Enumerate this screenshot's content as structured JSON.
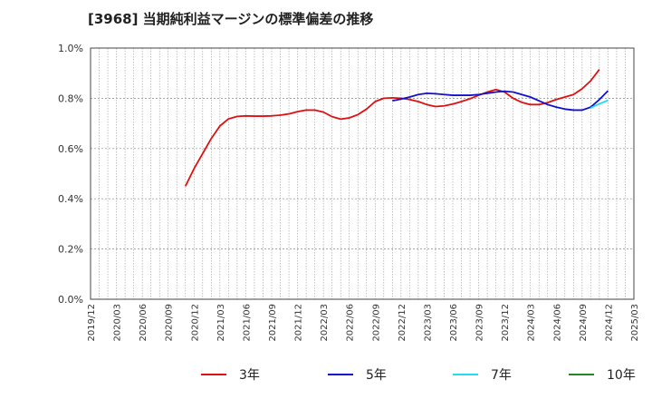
{
  "chart_data": {
    "type": "line",
    "title": "[3968]  当期純利益マージンの標準偏差の推移",
    "xlabel": "",
    "ylabel": "",
    "ylim": [
      0,
      1.0
    ],
    "y_ticks": [
      0.0,
      0.2,
      0.4,
      0.6,
      0.8,
      1.0
    ],
    "y_tick_labels": [
      "0.0%",
      "0.2%",
      "0.4%",
      "0.6%",
      "0.8%",
      "1.0%"
    ],
    "x_range": [
      "2019/12",
      "2025/03"
    ],
    "x_tick_labels": [
      "2019/12",
      "2020/03",
      "2020/06",
      "2020/09",
      "2020/12",
      "2021/03",
      "2021/06",
      "2021/09",
      "2021/12",
      "2022/03",
      "2022/06",
      "2022/09",
      "2022/12",
      "2023/03",
      "2023/06",
      "2023/09",
      "2023/12",
      "2024/03",
      "2024/06",
      "2024/09",
      "2024/12",
      "2025/03"
    ],
    "grid": true,
    "legend_position": "bottom",
    "series": [
      {
        "name": "3年",
        "color": "#dd1111",
        "start": "2020/11",
        "values": [
          0.45,
          0.52,
          0.58,
          0.64,
          0.69,
          0.718,
          0.728,
          0.73,
          0.729,
          0.729,
          0.73,
          0.733,
          0.738,
          0.747,
          0.753,
          0.753,
          0.745,
          0.727,
          0.717,
          0.722,
          0.735,
          0.757,
          0.787,
          0.8,
          0.802,
          0.8,
          0.795,
          0.787,
          0.775,
          0.767,
          0.77,
          0.777,
          0.787,
          0.798,
          0.812,
          0.825,
          0.835,
          0.825,
          0.8,
          0.784,
          0.775,
          0.775,
          0.783,
          0.795,
          0.805,
          0.815,
          0.838,
          0.87,
          0.915
        ]
      },
      {
        "name": "5年",
        "color": "#1111cc",
        "start": "2022/11",
        "values": [
          0.79,
          0.797,
          0.805,
          0.815,
          0.82,
          0.818,
          0.815,
          0.812,
          0.812,
          0.812,
          0.815,
          0.82,
          0.825,
          0.828,
          0.825,
          0.815,
          0.805,
          0.79,
          0.775,
          0.765,
          0.757,
          0.753,
          0.753,
          0.765,
          0.795,
          0.83
        ]
      },
      {
        "name": "7年",
        "color": "#22ddee",
        "start": "2024/10",
        "values": [
          0.762,
          0.778,
          0.792
        ]
      },
      {
        "name": "10年",
        "color": "#228822",
        "start": "2025/03",
        "values": []
      }
    ]
  }
}
